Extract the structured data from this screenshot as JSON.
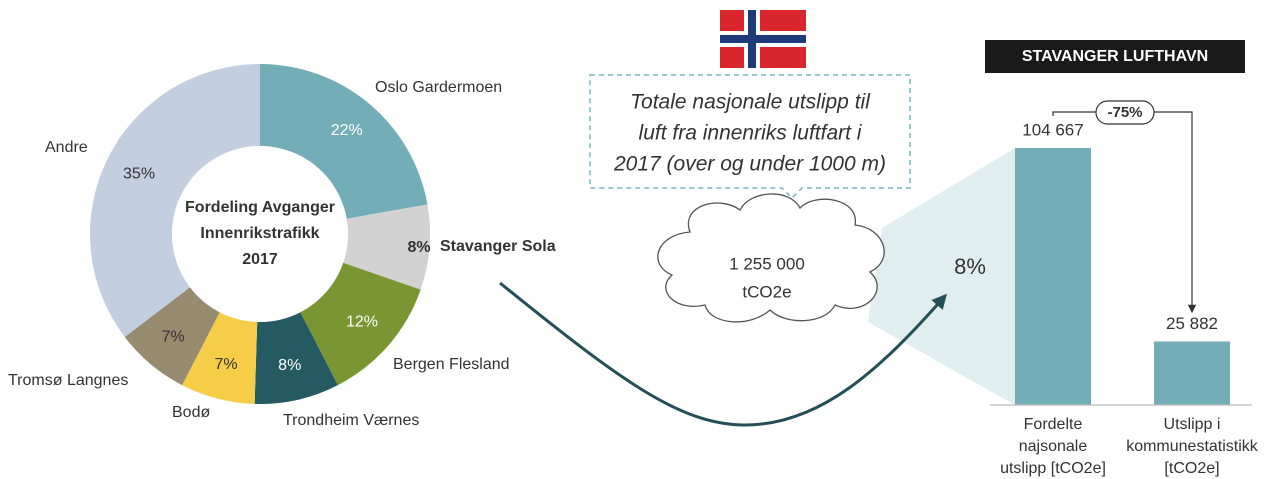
{
  "chart_data": [
    {
      "type": "donut",
      "title": [
        "Fordeling Avganger",
        "Innenrikstrafikk",
        "2017"
      ],
      "categories": [
        "Oslo Gardermoen",
        "Stavanger Sola",
        "Bergen Flesland",
        "Trondheim Værnes",
        "Bodø",
        "Tromsø Langnes",
        "Andre"
      ],
      "values": [
        22,
        8,
        12,
        8,
        7,
        7,
        35
      ],
      "value_labels": [
        "22%",
        "8%",
        "12%",
        "8%",
        "7%",
        "7%",
        "35%"
      ],
      "colors": [
        "#72adb8",
        "#d2d2d2",
        "#7a9632",
        "#265a63",
        "#f6cd47",
        "#968a6f",
        "#c3cee1"
      ],
      "highlight": 1
    },
    {
      "type": "bar",
      "title": "STAVANGER LUFTHAVN",
      "categories": [
        [
          "Fordelte",
          "najsonale",
          "utslipp [tCO2e]"
        ],
        [
          "Utslipp i",
          "kommunestatistikk",
          "[tCO2e]"
        ]
      ],
      "values": [
        104667,
        25882
      ],
      "value_labels": [
        "104 667",
        "25 882"
      ],
      "color": "#72adb8",
      "change": "-75%"
    }
  ],
  "callout": [
    "Totale nasjonale utslipp til",
    "luft fra innenriks luftfart i",
    "2017 (over og under 1000 m)"
  ],
  "cloud": [
    "1 255 000",
    "tCO2e"
  ],
  "share": "8%"
}
